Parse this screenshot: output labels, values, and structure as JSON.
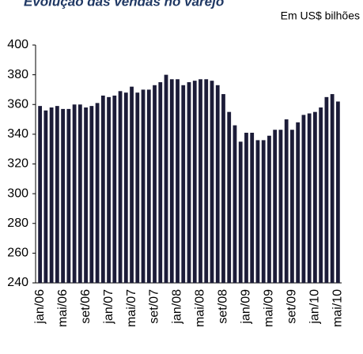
{
  "chart_data": {
    "type": "bar",
    "title": "Evolução das vendas no varejo",
    "subtitle": "Em US$ bilhões",
    "categories": [
      "jan/06",
      null,
      null,
      null,
      "mai/06",
      null,
      null,
      null,
      "set/06",
      null,
      null,
      null,
      "jan/07",
      null,
      null,
      null,
      "mai/07",
      null,
      null,
      null,
      "set/07",
      null,
      null,
      null,
      "jan/08",
      null,
      null,
      null,
      "mai/08",
      null,
      null,
      null,
      "set/08",
      null,
      null,
      null,
      "jan/09",
      null,
      null,
      null,
      "mai/09",
      null,
      null,
      null,
      "set/09",
      null,
      null,
      null,
      "jan/10",
      null,
      null,
      null,
      "mai/10"
    ],
    "values": [
      359,
      356,
      358,
      359,
      357,
      357,
      360,
      360,
      358,
      359,
      361,
      366,
      365,
      366,
      369,
      368,
      372,
      368,
      370,
      370,
      373,
      375,
      380,
      377,
      377,
      373,
      375,
      376,
      377,
      377,
      376,
      373,
      367,
      355,
      346,
      335,
      341,
      341,
      336,
      336,
      339,
      343,
      343,
      350,
      343,
      348,
      353,
      354,
      355,
      358,
      365,
      367,
      362
    ],
    "color": "#1c1c38",
    "ylim": [
      240,
      400
    ],
    "yticks": [
      240,
      260,
      280,
      300,
      320,
      340,
      360,
      380,
      400
    ],
    "grid": false
  }
}
